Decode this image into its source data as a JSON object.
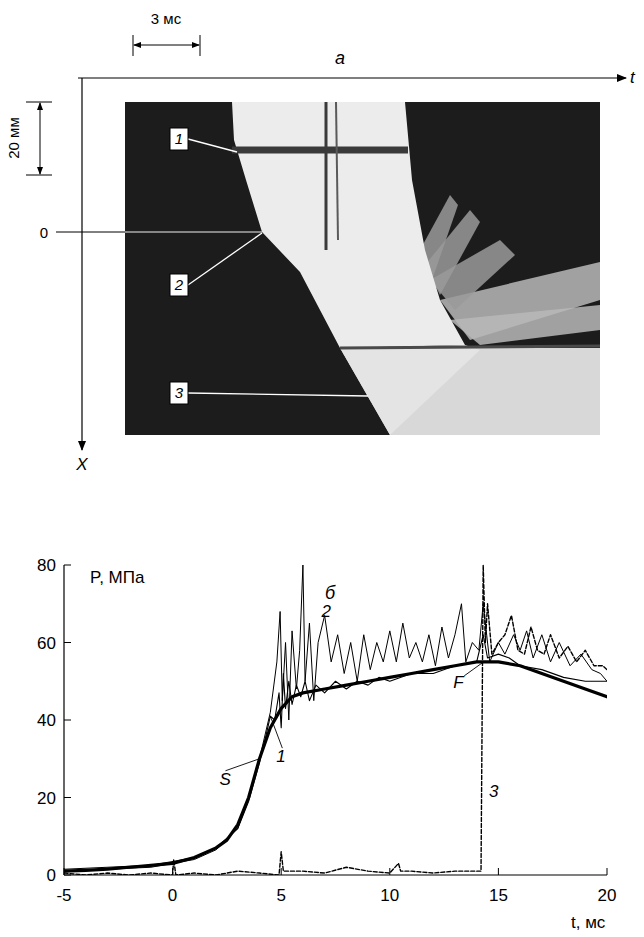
{
  "panel_a": {
    "label": "a",
    "axis_t": "t",
    "axis_x": "X",
    "time_scale": "3 мс",
    "length_scale": "20 мм",
    "origin": "0",
    "markers": [
      "1",
      "2",
      "3"
    ]
  },
  "chart_data": {
    "type": "line",
    "panel_label": "б",
    "x_label": "t, мс",
    "y_label": "P, МПа",
    "xlim": [
      -5,
      20
    ],
    "xticks": [
      -5,
      0,
      5,
      10,
      15,
      20
    ],
    "ylim": [
      0,
      80
    ],
    "yticks": [
      0,
      20,
      40,
      60,
      80
    ],
    "series": [
      {
        "name": "S",
        "color": "#000000",
        "line_style": "solid",
        "x": [
          -5,
          -4,
          -3,
          -2,
          -1,
          0,
          1,
          2,
          2.5,
          3,
          3.5,
          4,
          4.5,
          5,
          5.5,
          6,
          7,
          8,
          9,
          10,
          11,
          12,
          13,
          14,
          15,
          16,
          17,
          18,
          19,
          20
        ],
        "values": [
          1,
          1.2,
          1.5,
          2,
          2.5,
          3,
          4.5,
          7,
          9,
          13,
          20,
          30,
          38,
          43,
          46,
          47,
          48,
          49,
          50,
          51,
          52,
          53,
          54,
          55,
          55,
          54,
          52,
          50,
          48,
          46
        ]
      },
      {
        "name": "1",
        "color": "#000000",
        "line_style": "solid",
        "x": [
          -5,
          -3,
          -1,
          0,
          1,
          2,
          3,
          3.5,
          4,
          4.3,
          4.5,
          4.7,
          4.9,
          5.0,
          5.1,
          5.2,
          5.35,
          5.5,
          5.7,
          5.9,
          6.1,
          6.3,
          6.6,
          7,
          7.5,
          8,
          8.5,
          9,
          9.5,
          10,
          11,
          12,
          13,
          14,
          14.3,
          14.5,
          15,
          15.5,
          16,
          17,
          18,
          19,
          20
        ],
        "values": [
          1.5,
          2,
          2.5,
          3.5,
          4.5,
          7,
          12,
          19,
          29,
          36,
          41,
          40,
          47,
          38,
          52,
          43,
          50,
          44,
          49,
          46,
          50,
          45,
          49,
          47,
          50,
          48,
          50,
          49,
          51,
          50,
          52,
          52,
          54,
          55,
          62,
          56,
          57,
          56,
          54,
          53,
          51,
          50,
          50
        ]
      },
      {
        "name": "2",
        "color": "#000000",
        "line_style": "solid",
        "x": [
          -5,
          -3,
          -1,
          0,
          1,
          2,
          3,
          3.5,
          4,
          4.5,
          4.8,
          4.95,
          5.05,
          5.2,
          5.35,
          5.5,
          5.7,
          5.85,
          6.0,
          6.1,
          6.3,
          6.5,
          6.7,
          7,
          7.3,
          7.6,
          7.9,
          8.2,
          8.5,
          8.8,
          9.1,
          9.4,
          9.7,
          10,
          10.3,
          10.6,
          10.9,
          11.2,
          11.5,
          11.8,
          12.1,
          12.4,
          12.7,
          13,
          13.3,
          13.5,
          13.8,
          14.1,
          14.3,
          14.6,
          15,
          15.3,
          15.7,
          16,
          16.3,
          16.6,
          17,
          17.4,
          17.8,
          18.3,
          18.8,
          19.3,
          19.7,
          20
        ],
        "values": [
          1,
          1.5,
          2,
          3,
          4,
          6.5,
          12,
          20,
          30,
          42,
          55,
          68,
          45,
          60,
          40,
          63,
          48,
          58,
          80,
          50,
          65,
          45,
          60,
          67,
          55,
          62,
          52,
          60,
          50,
          62,
          53,
          60,
          55,
          63,
          55,
          65,
          56,
          60,
          55,
          62,
          54,
          64,
          56,
          62,
          70,
          55,
          60,
          58,
          70,
          55,
          60,
          57,
          62,
          58,
          63,
          56,
          62,
          55,
          60,
          54,
          57,
          53,
          52,
          50
        ]
      },
      {
        "name": "3",
        "color": "#000000",
        "line_style": "dashed",
        "x": [
          -5,
          -4,
          -3,
          -2,
          -1,
          0,
          0.05,
          0.15,
          1,
          2,
          3,
          4,
          4.9,
          5,
          5.1,
          6,
          7,
          8,
          9,
          10,
          10.4,
          10.5,
          11,
          12,
          13,
          14,
          14.2,
          14.3,
          14.4,
          14.5,
          14.7,
          15,
          15.3,
          15.6,
          15.9,
          16.2,
          16.5,
          16.8,
          17.1,
          17.4,
          17.8,
          18.2,
          18.6,
          19,
          19.4,
          19.8,
          20
        ],
        "values": [
          0.5,
          0,
          0.5,
          0,
          0.5,
          0,
          4,
          0,
          0.5,
          0,
          1,
          0.5,
          0,
          6,
          1,
          1,
          0.5,
          2,
          1,
          0.5,
          3,
          1,
          1,
          0.5,
          1,
          1,
          1,
          80,
          60,
          70,
          57,
          60,
          62,
          67,
          58,
          57,
          64,
          58,
          57,
          62,
          56,
          59,
          55,
          58,
          54,
          54,
          53
        ]
      }
    ],
    "annotations": [
      {
        "text": "F",
        "x": 14.3,
        "y": 55
      }
    ]
  }
}
